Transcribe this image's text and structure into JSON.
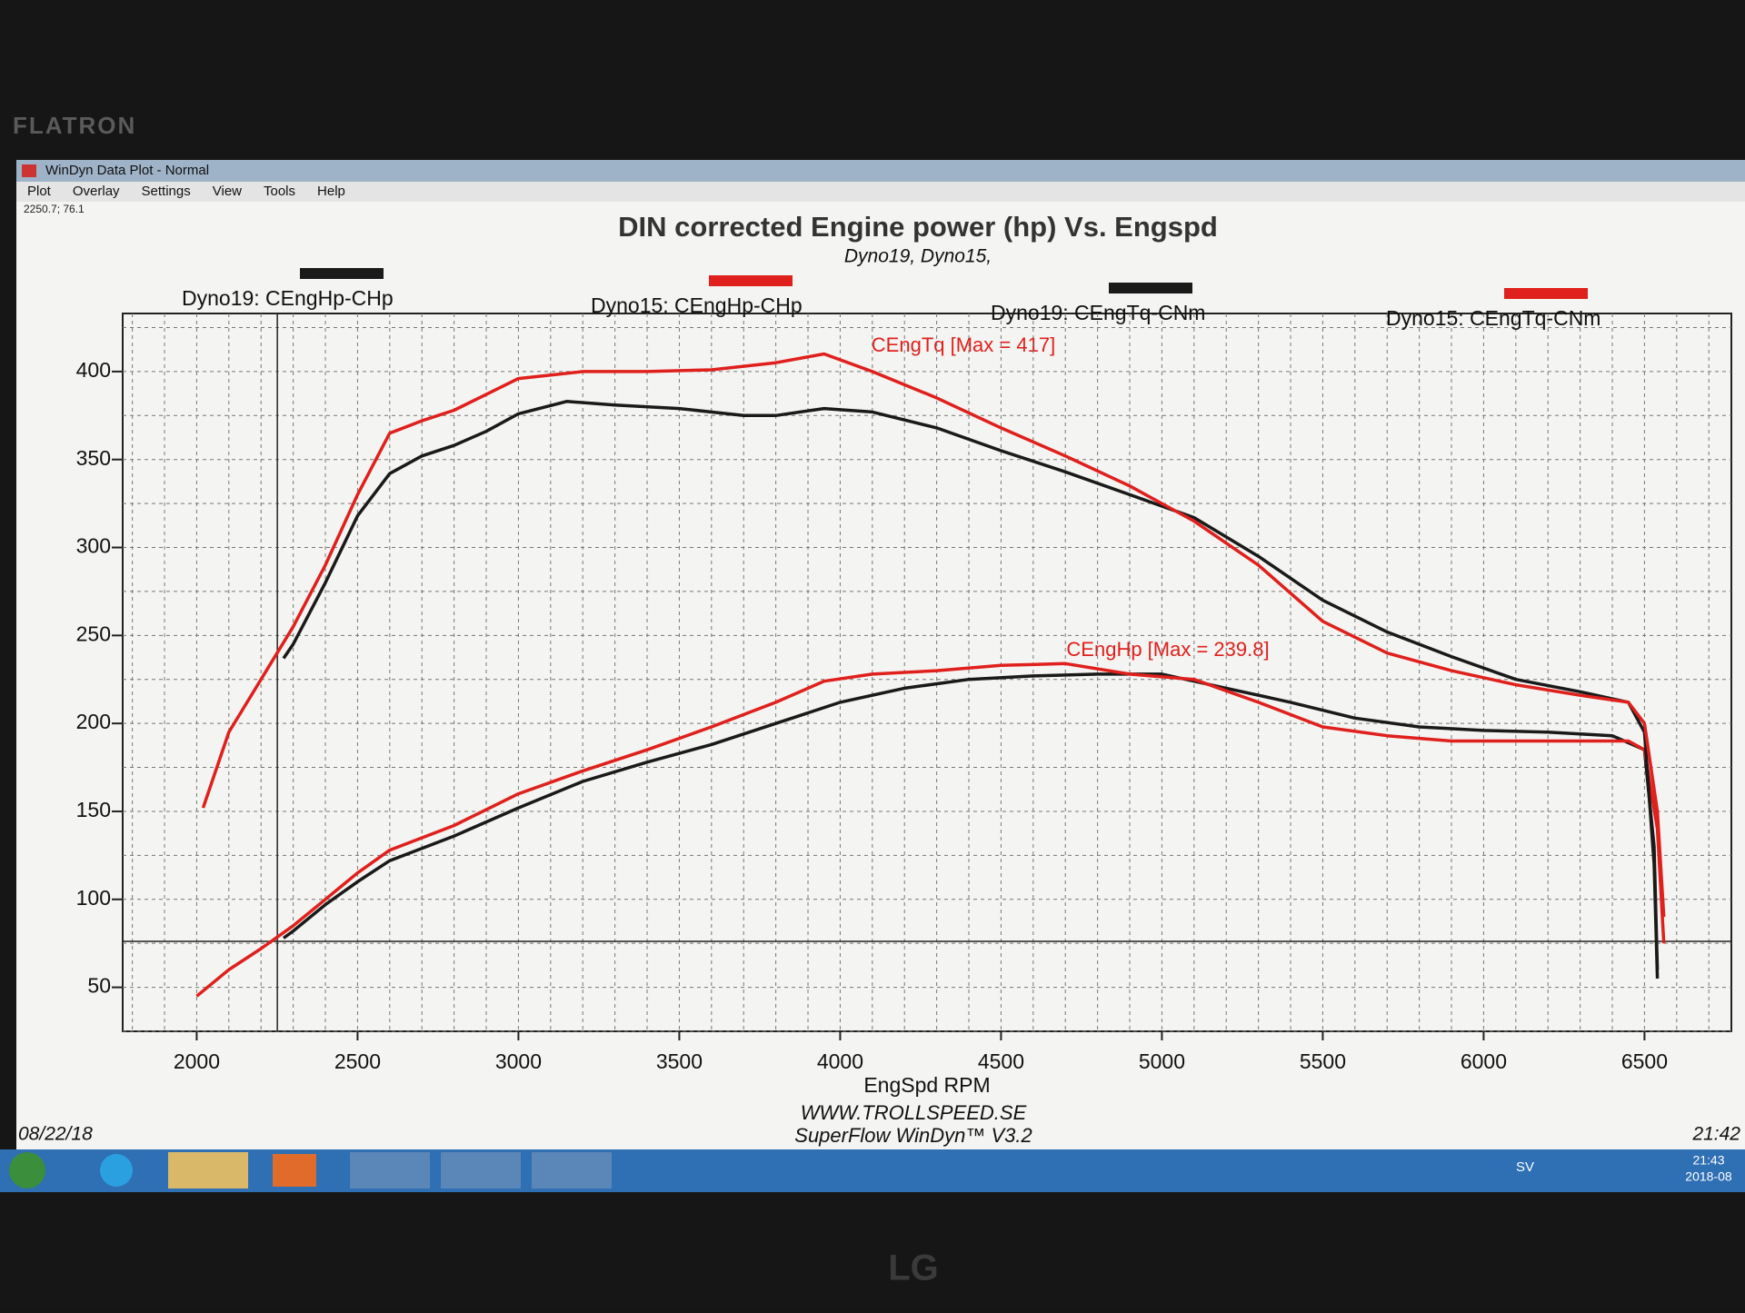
{
  "monitor": {
    "brand": "FLATRON",
    "maker": "LG"
  },
  "window": {
    "title": "WinDyn Data Plot - Normal",
    "menu": [
      "Plot",
      "Overlay",
      "Settings",
      "View",
      "Tools",
      "Help"
    ]
  },
  "chart_data": {
    "type": "line",
    "title": "DIN corrected Engine power (hp) Vs. Engspd",
    "subtitle": "Dyno19, Dyno15,",
    "x_label": "EngSpd RPM",
    "xlim": [
      1770,
      6770
    ],
    "ylim": [
      25,
      433
    ],
    "xticks": [
      2000,
      2500,
      3000,
      3500,
      4000,
      4500,
      5000,
      5500,
      6000,
      6500
    ],
    "yticks": [
      50,
      100,
      150,
      200,
      250,
      300,
      350,
      400
    ],
    "grid": true,
    "minor_grid": {
      "x": 100,
      "y": 25
    },
    "cursor": {
      "x": 2250.7,
      "y": 76.1,
      "label": "2250.7; 76.1"
    },
    "annotations": [
      "CEngTq [Max = 417]",
      "CEngHp [Max = 239.8]"
    ],
    "series": [
      {
        "name": "Dyno19: CEngHp-CHp",
        "color": "#1a1a1a",
        "x": [
          2270,
          2300,
          2400,
          2500,
          2600,
          2800,
          3000,
          3200,
          3400,
          3600,
          3800,
          4000,
          4200,
          4400,
          4600,
          4800,
          5000,
          5200,
          5400,
          5600,
          5800,
          6000,
          6200,
          6400,
          6500,
          6530,
          6540
        ],
        "values": [
          78,
          82,
          97,
          110,
          122,
          136,
          152,
          167,
          178,
          188,
          200,
          212,
          220,
          225,
          227,
          228,
          228,
          220,
          212,
          203,
          198,
          196,
          195,
          193,
          185,
          130,
          60
        ]
      },
      {
        "name": "Dyno15: CEngHp-CHp",
        "color": "#e0201c",
        "x": [
          2000,
          2100,
          2200,
          2300,
          2400,
          2500,
          2600,
          2800,
          3000,
          3200,
          3400,
          3600,
          3800,
          3950,
          4100,
          4300,
          4500,
          4700,
          4900,
          5100,
          5300,
          5500,
          5700,
          5900,
          6100,
          6300,
          6450,
          6500,
          6540,
          6560
        ],
        "values": [
          45,
          60,
          72,
          85,
          100,
          115,
          128,
          142,
          160,
          173,
          185,
          198,
          212,
          224,
          228,
          230,
          233,
          234,
          228,
          225,
          212,
          198,
          193,
          190,
          190,
          190,
          190,
          185,
          140,
          75
        ]
      },
      {
        "name": "Dyno19: CEngTq-CNm",
        "color": "#1a1a1a",
        "x": [
          2270,
          2300,
          2400,
          2500,
          2600,
          2700,
          2800,
          2900,
          3000,
          3150,
          3300,
          3500,
          3700,
          3800,
          3950,
          4100,
          4300,
          4500,
          4700,
          4900,
          5100,
          5300,
          5500,
          5700,
          5900,
          6100,
          6300,
          6450,
          6500,
          6530,
          6540
        ],
        "values": [
          237,
          245,
          280,
          318,
          342,
          352,
          358,
          366,
          376,
          383,
          381,
          379,
          375,
          375,
          379,
          377,
          368,
          355,
          343,
          330,
          317,
          295,
          270,
          252,
          238,
          225,
          218,
          212,
          195,
          120,
          55
        ]
      },
      {
        "name": "Dyno15: CEngTq-CNm",
        "color": "#e0201c",
        "x": [
          2020,
          2100,
          2200,
          2300,
          2400,
          2500,
          2600,
          2700,
          2800,
          2900,
          3000,
          3200,
          3400,
          3600,
          3800,
          3950,
          4100,
          4300,
          4500,
          4700,
          4900,
          5100,
          5300,
          5500,
          5700,
          5900,
          6100,
          6300,
          6450,
          6500,
          6540,
          6560
        ],
        "values": [
          152,
          195,
          225,
          255,
          290,
          330,
          365,
          372,
          378,
          387,
          396,
          400,
          400,
          401,
          405,
          410,
          400,
          385,
          368,
          352,
          335,
          315,
          290,
          258,
          240,
          230,
          222,
          216,
          212,
          200,
          150,
          90
        ]
      }
    ]
  },
  "footer": {
    "site": "WWW.TROLLSPEED.SE",
    "software": "SuperFlow WinDyn™ V3.2",
    "date": "08/22/18",
    "time": "21:42"
  },
  "taskbar": {
    "language": "SV",
    "clock": "21:43",
    "date": "2018-08"
  }
}
